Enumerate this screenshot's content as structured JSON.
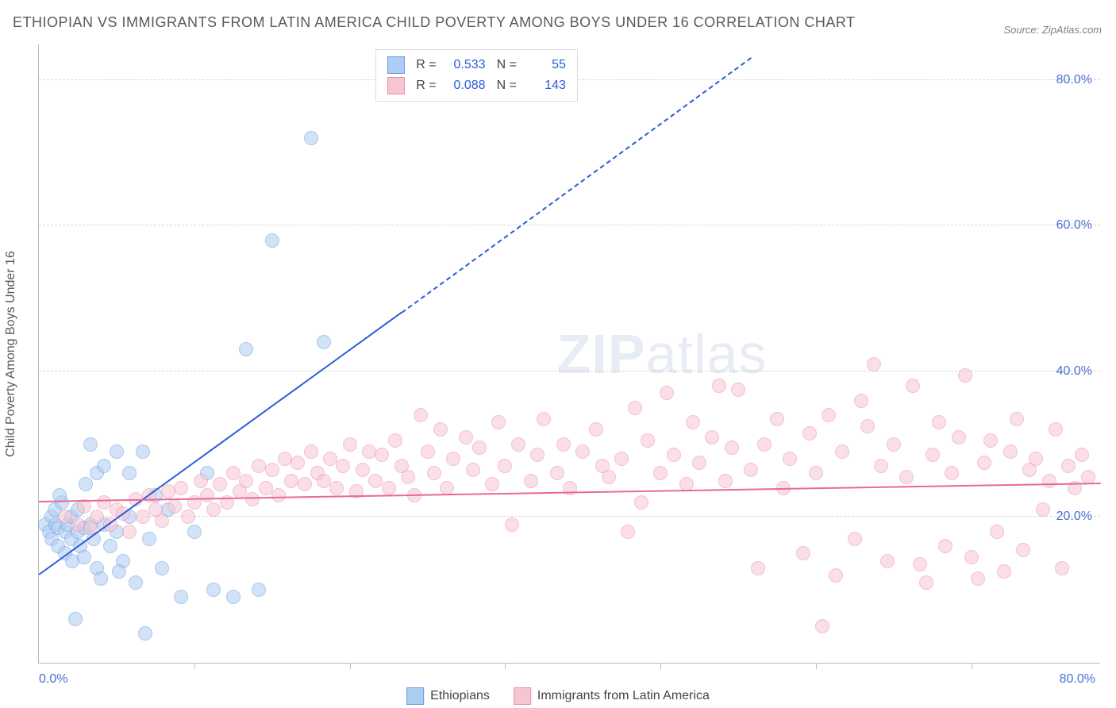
{
  "title": "ETHIOPIAN VS IMMIGRANTS FROM LATIN AMERICA CHILD POVERTY AMONG BOYS UNDER 16 CORRELATION CHART",
  "source": "Source: ZipAtlas.com",
  "ylabel": "Child Poverty Among Boys Under 16",
  "watermark_a": "ZIP",
  "watermark_b": "atlas",
  "chart": {
    "type": "scatter",
    "xlim": [
      0,
      82
    ],
    "ylim": [
      0,
      85
    ],
    "yticks": [
      20,
      40,
      60,
      80
    ],
    "ytick_labels": [
      "20.0%",
      "40.0%",
      "60.0%",
      "80.0%"
    ],
    "xtick_at": [
      0,
      80
    ],
    "xtick_labels": [
      "0.0%",
      "80.0%"
    ],
    "xticks_minor": [
      12,
      24,
      36,
      48,
      60,
      72
    ],
    "grid_color": "#d8d8d8",
    "background": "#ffffff",
    "axis_color": "#bcbcbc",
    "label_color": "#4a6fd8",
    "marker_radius": 9,
    "marker_opacity": 0.55,
    "series": [
      {
        "name": "Ethiopians",
        "color_fill": "#aecdf2",
        "color_stroke": "#6a9ae0",
        "R": "0.533",
        "N": "55",
        "trend": {
          "x0": 0,
          "y0": 12,
          "x1_solid": 28,
          "y1_solid": 48,
          "x1_dash": 55,
          "y1_dash": 83,
          "color": "#2b5cd9"
        },
        "points": [
          [
            0.5,
            19
          ],
          [
            0.8,
            18
          ],
          [
            1,
            17
          ],
          [
            1,
            20
          ],
          [
            1.2,
            21
          ],
          [
            1.3,
            19
          ],
          [
            1.5,
            18.5
          ],
          [
            1.5,
            16
          ],
          [
            1.8,
            22
          ],
          [
            2,
            18
          ],
          [
            2,
            15
          ],
          [
            2.2,
            19
          ],
          [
            2.5,
            17
          ],
          [
            2.5,
            20
          ],
          [
            2.6,
            14
          ],
          [
            3,
            21
          ],
          [
            3,
            18
          ],
          [
            3.2,
            16
          ],
          [
            3.5,
            18.5
          ],
          [
            3.5,
            14.5
          ],
          [
            4,
            30
          ],
          [
            4,
            19
          ],
          [
            4.2,
            17
          ],
          [
            4.5,
            26
          ],
          [
            4.5,
            13
          ],
          [
            5,
            27
          ],
          [
            5,
            19
          ],
          [
            5.5,
            16
          ],
          [
            6,
            29
          ],
          [
            6,
            18
          ],
          [
            6.5,
            14
          ],
          [
            7,
            26
          ],
          [
            7,
            20
          ],
          [
            7.5,
            11
          ],
          [
            8,
            29
          ],
          [
            8.5,
            17
          ],
          [
            9,
            23
          ],
          [
            9.5,
            13
          ],
          [
            10,
            21
          ],
          [
            11,
            9
          ],
          [
            12,
            18
          ],
          [
            13,
            26
          ],
          [
            13.5,
            10
          ],
          [
            15,
            9
          ],
          [
            16,
            43
          ],
          [
            17,
            10
          ],
          [
            18,
            58
          ],
          [
            21,
            72
          ],
          [
            22,
            44
          ],
          [
            2.8,
            6
          ],
          [
            4.8,
            11.5
          ],
          [
            6.2,
            12.5
          ],
          [
            1.6,
            23
          ],
          [
            3.6,
            24.5
          ],
          [
            8.2,
            4
          ]
        ]
      },
      {
        "name": "Immigrants from Latin America",
        "color_fill": "#f6c5d2",
        "color_stroke": "#eb8fa9",
        "R": "0.088",
        "N": "143",
        "trend": {
          "x0": 0,
          "y0": 22,
          "x1_solid": 82,
          "y1_solid": 24.5,
          "x1_dash": 82,
          "y1_dash": 24.5,
          "color": "#e86a94"
        },
        "points": [
          [
            2,
            20
          ],
          [
            3,
            19
          ],
          [
            3.5,
            21.5
          ],
          [
            4,
            18.5
          ],
          [
            4.5,
            20
          ],
          [
            5,
            22
          ],
          [
            5.5,
            19
          ],
          [
            6,
            21
          ],
          [
            6.5,
            20.5
          ],
          [
            7,
            18
          ],
          [
            7.5,
            22.5
          ],
          [
            8,
            20
          ],
          [
            8.5,
            23
          ],
          [
            9,
            21
          ],
          [
            9.5,
            19.5
          ],
          [
            10,
            23.5
          ],
          [
            10.5,
            21.5
          ],
          [
            11,
            24
          ],
          [
            11.5,
            20
          ],
          [
            12,
            22
          ],
          [
            12.5,
            25
          ],
          [
            13,
            23
          ],
          [
            13.5,
            21
          ],
          [
            14,
            24.5
          ],
          [
            14.5,
            22
          ],
          [
            15,
            26
          ],
          [
            15.5,
            23.5
          ],
          [
            16,
            25
          ],
          [
            16.5,
            22.5
          ],
          [
            17,
            27
          ],
          [
            17.5,
            24
          ],
          [
            18,
            26.5
          ],
          [
            18.5,
            23
          ],
          [
            19,
            28
          ],
          [
            19.5,
            25
          ],
          [
            20,
            27.5
          ],
          [
            20.5,
            24.5
          ],
          [
            21,
            29
          ],
          [
            21.5,
            26
          ],
          [
            22,
            25
          ],
          [
            22.5,
            28
          ],
          [
            23,
            24
          ],
          [
            23.5,
            27
          ],
          [
            24,
            30
          ],
          [
            24.5,
            23.5
          ],
          [
            25,
            26.5
          ],
          [
            25.5,
            29
          ],
          [
            26,
            25
          ],
          [
            26.5,
            28.5
          ],
          [
            27,
            24
          ],
          [
            27.5,
            30.5
          ],
          [
            28,
            27
          ],
          [
            28.5,
            25.5
          ],
          [
            29,
            23
          ],
          [
            30,
            29
          ],
          [
            30.5,
            26
          ],
          [
            31,
            32
          ],
          [
            31.5,
            24
          ],
          [
            32,
            28
          ],
          [
            33,
            31
          ],
          [
            33.5,
            26.5
          ],
          [
            34,
            29.5
          ],
          [
            35,
            24.5
          ],
          [
            35.5,
            33
          ],
          [
            36,
            27
          ],
          [
            36.5,
            19
          ],
          [
            37,
            30
          ],
          [
            38,
            25
          ],
          [
            38.5,
            28.5
          ],
          [
            39,
            33.5
          ],
          [
            40,
            26
          ],
          [
            40.5,
            30
          ],
          [
            41,
            24
          ],
          [
            42,
            29
          ],
          [
            43,
            32
          ],
          [
            43.5,
            27
          ],
          [
            44,
            25.5
          ],
          [
            45,
            28
          ],
          [
            46,
            35
          ],
          [
            46.5,
            22
          ],
          [
            47,
            30.5
          ],
          [
            48,
            26
          ],
          [
            48.5,
            37
          ],
          [
            49,
            28.5
          ],
          [
            50,
            24.5
          ],
          [
            50.5,
            33
          ],
          [
            51,
            27.5
          ],
          [
            52,
            31
          ],
          [
            53,
            25
          ],
          [
            53.5,
            29.5
          ],
          [
            54,
            37.5
          ],
          [
            55,
            26.5
          ],
          [
            55.5,
            13
          ],
          [
            56,
            30
          ],
          [
            57,
            33.5
          ],
          [
            57.5,
            24
          ],
          [
            58,
            28
          ],
          [
            59,
            15
          ],
          [
            59.5,
            31.5
          ],
          [
            60,
            26
          ],
          [
            61,
            34
          ],
          [
            61.5,
            12
          ],
          [
            62,
            29
          ],
          [
            63,
            17
          ],
          [
            64,
            32.5
          ],
          [
            64.5,
            41
          ],
          [
            65,
            27
          ],
          [
            65.5,
            14
          ],
          [
            66,
            30
          ],
          [
            67,
            25.5
          ],
          [
            67.5,
            38
          ],
          [
            68,
            13.5
          ],
          [
            69,
            28.5
          ],
          [
            69.5,
            33
          ],
          [
            70,
            16
          ],
          [
            70.5,
            26
          ],
          [
            71,
            31
          ],
          [
            71.5,
            39.5
          ],
          [
            72,
            14.5
          ],
          [
            73,
            27.5
          ],
          [
            73.5,
            30.5
          ],
          [
            74,
            18
          ],
          [
            74.5,
            12.5
          ],
          [
            75,
            29
          ],
          [
            75.5,
            33.5
          ],
          [
            76,
            15.5
          ],
          [
            76.5,
            26.5
          ],
          [
            77,
            28
          ],
          [
            77.5,
            21
          ],
          [
            78,
            25
          ],
          [
            78.5,
            32
          ],
          [
            79,
            13
          ],
          [
            79.5,
            27
          ],
          [
            80,
            24
          ],
          [
            80.5,
            28.5
          ],
          [
            81,
            25.5
          ],
          [
            60.5,
            5
          ],
          [
            63.5,
            36
          ],
          [
            68.5,
            11
          ],
          [
            72.5,
            11.5
          ],
          [
            52.5,
            38
          ],
          [
            45.5,
            18
          ],
          [
            29.5,
            34
          ]
        ]
      }
    ]
  },
  "bottom_legend": [
    {
      "label": "Ethiopians",
      "fill": "#aecdf2",
      "stroke": "#6a9ae0"
    },
    {
      "label": "Immigrants from Latin America",
      "fill": "#f6c5d2",
      "stroke": "#eb8fa9"
    }
  ]
}
